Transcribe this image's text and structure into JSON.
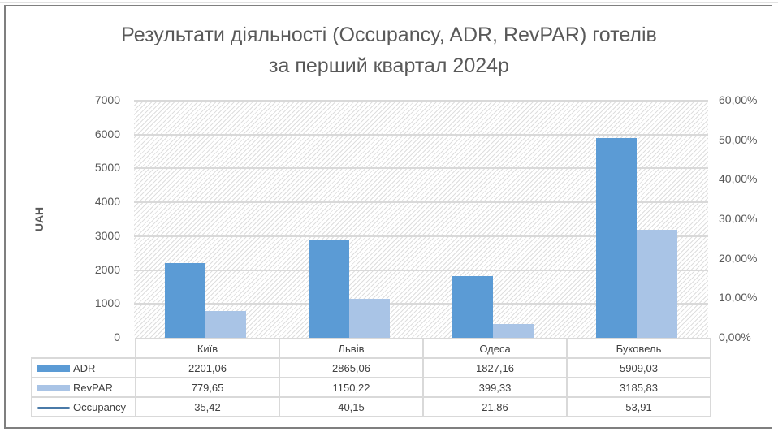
{
  "chart_data": {
    "type": "bar",
    "title": "Результати діяльності (Occupancy, ADR, RevPAR) готелів за перший квартал 2024р",
    "title_lines": [
      "Результати діяльності (Occupancy, ADR, RevPAR) готелів",
      "за перший квартал 2024р"
    ],
    "xlabel": "",
    "ylabel": "UAH",
    "ylim": [
      0,
      7000
    ],
    "y2lim": [
      0,
      0.6
    ],
    "yticks": [
      "0",
      "1000",
      "2000",
      "3000",
      "4000",
      "5000",
      "6000",
      "7000"
    ],
    "y2ticks": [
      "0,00%",
      "10,00%",
      "20,00%",
      "30,00%",
      "40,00%",
      "50,00%",
      "60,00%"
    ],
    "grid": true,
    "legend_position": "data-table",
    "categories": [
      "Київ",
      "Львів",
      "Одеса",
      "Буковель"
    ],
    "series": [
      {
        "name": "ADR",
        "type": "bar",
        "axis": "left",
        "color": "#5b9bd5",
        "values": [
          2201.06,
          2865.06,
          1827.16,
          5909.03
        ],
        "labels": [
          "2201,06",
          "2865,06",
          "1827,16",
          "5909,03"
        ]
      },
      {
        "name": "RevPAR",
        "type": "bar",
        "axis": "left",
        "color": "#a9c4e6",
        "values": [
          779.65,
          1150.22,
          399.33,
          3185.83
        ],
        "labels": [
          "779,65",
          "1150,22",
          "399,33",
          "3185,83"
        ]
      },
      {
        "name": "Occupancy",
        "type": "line",
        "axis": "right",
        "color": "#4a7aa8",
        "values": [
          35.42,
          40.15,
          21.86,
          53.91
        ],
        "labels": [
          "35,42",
          "40,15",
          "21,86",
          "53,91"
        ]
      }
    ]
  },
  "ui": {
    "title_line1": "Результати діяльності (Occupancy, ADR, RevPAR) готелів",
    "title_line2": "за перший квартал 2024р",
    "yaxis_title": "UAH",
    "table": {
      "headers": [
        "Київ",
        "Львів",
        "Одеса",
        "Буковель"
      ],
      "rows": [
        {
          "label": "ADR",
          "cells": [
            "2201,06",
            "2865,06",
            "1827,16",
            "5909,03"
          ]
        },
        {
          "label": "RevPAR",
          "cells": [
            "779,65",
            "1150,22",
            "399,33",
            "3185,83"
          ]
        },
        {
          "label": "Occupancy",
          "cells": [
            "35,42",
            "40,15",
            "21,86",
            "53,91"
          ]
        }
      ]
    }
  }
}
